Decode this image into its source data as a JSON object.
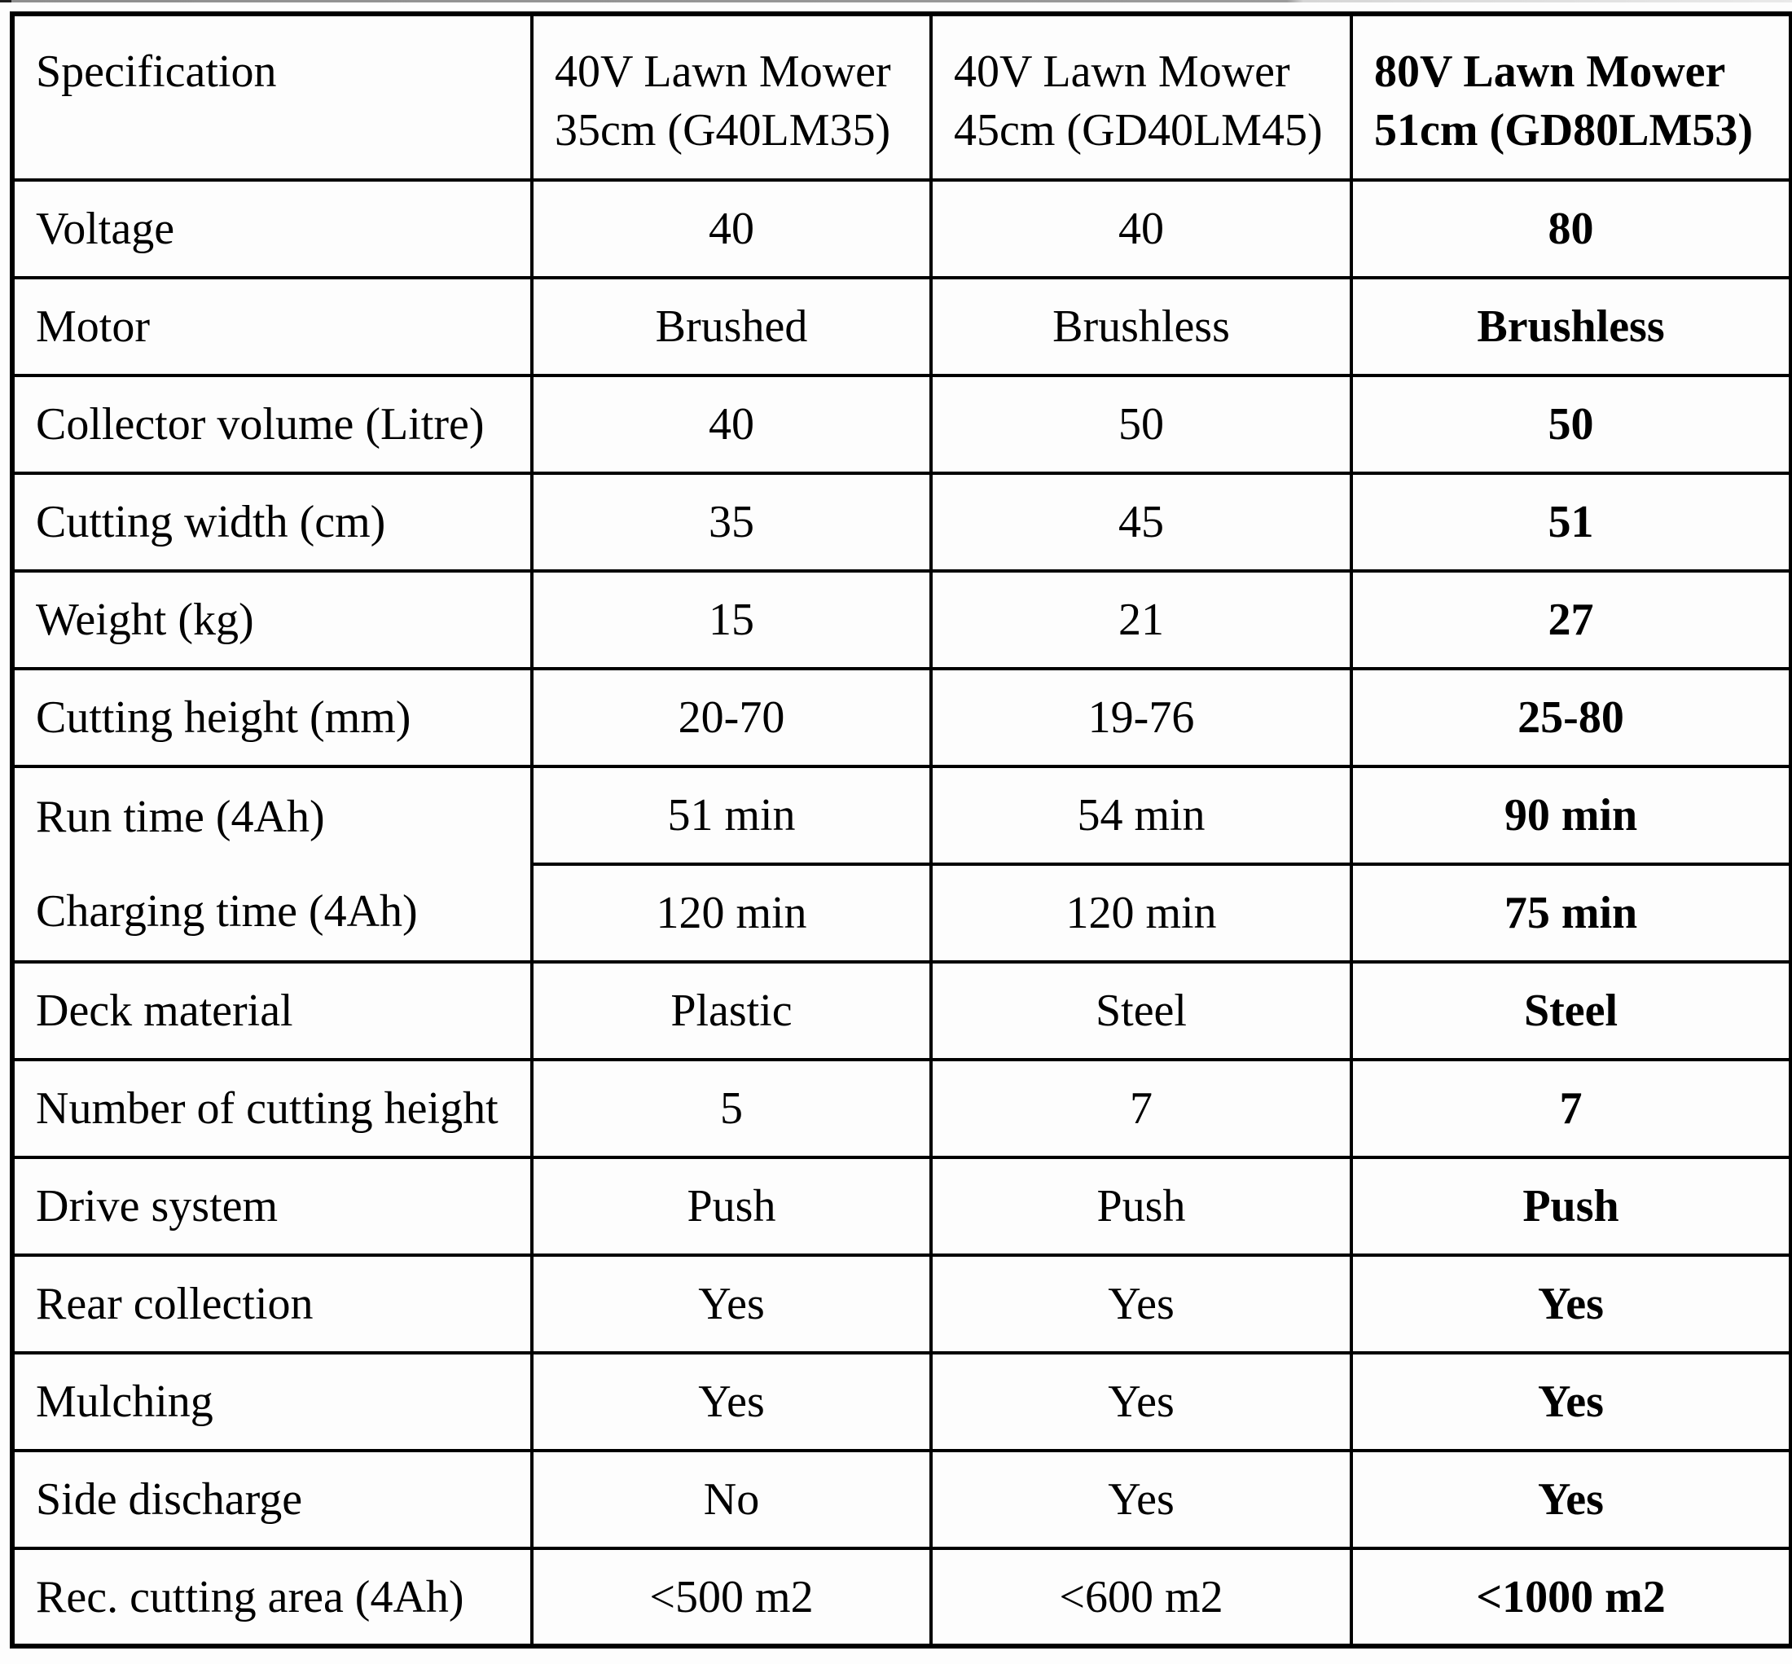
{
  "header": {
    "col1": "Specification",
    "col2": {
      "line1": "40V Lawn Mower",
      "line2": "35cm (G40LM35)"
    },
    "col3": {
      "line1": "40V Lawn Mower",
      "line2": "45cm (GD40LM45)"
    },
    "col4": {
      "line1": "80V Lawn Mower",
      "line2": "51cm (GD80LM53)"
    }
  },
  "rows": [
    {
      "label": "Voltage",
      "v1": "40",
      "v2": "40",
      "v3": "80"
    },
    {
      "label": "Motor",
      "v1": "Brushed",
      "v2": "Brushless",
      "v3": "Brushless"
    },
    {
      "label": "Collector volume (Litre)",
      "v1": "40",
      "v2": "50",
      "v3": "50"
    },
    {
      "label": "Cutting width (cm)",
      "v1": "35",
      "v2": "45",
      "v3": "51"
    },
    {
      "label": "Weight (kg)",
      "v1": "15",
      "v2": "21",
      "v3": "27"
    },
    {
      "label": "Cutting height (mm)",
      "v1": "20-70",
      "v2": "19-76",
      "v3": "25-80"
    },
    {
      "label": "Run time (4Ah)",
      "v1": "51 min",
      "v2": "54 min",
      "v3": "90 min"
    },
    {
      "label": "Charging time (4Ah)",
      "v1": "120 min",
      "v2": "120 min",
      "v3": "75 min"
    },
    {
      "label": "Deck material",
      "v1": "Plastic",
      "v2": "Steel",
      "v3": "Steel"
    },
    {
      "label": "Number of cutting height",
      "v1": "5",
      "v2": "7",
      "v3": "7"
    },
    {
      "label": "Drive system",
      "v1": "Push",
      "v2": "Push",
      "v3": "Push"
    },
    {
      "label": "Rear collection",
      "v1": "Yes",
      "v2": "Yes",
      "v3": "Yes"
    },
    {
      "label": "Mulching",
      "v1": "Yes",
      "v2": "Yes",
      "v3": "Yes"
    },
    {
      "label": "Side discharge",
      "v1": "No",
      "v2": "Yes",
      "v3": "Yes"
    },
    {
      "label": "Rec. cutting area (4Ah)",
      "v1": "<500 m2",
      "v2": "<600 m2",
      "v3": "<1000 m2"
    }
  ],
  "colors": {
    "border": "#000000",
    "text": "#000000",
    "background": "#fdfdfd"
  },
  "chart_data": {
    "type": "table",
    "columns": [
      "Specification",
      "40V Lawn Mower 35cm (G40LM35)",
      "40V Lawn Mower 45cm (GD40LM45)",
      "80V Lawn Mower 51cm (GD80LM53)"
    ],
    "rows": [
      [
        "Voltage",
        "40",
        "40",
        "80"
      ],
      [
        "Motor",
        "Brushed",
        "Brushless",
        "Brushless"
      ],
      [
        "Collector volume (Litre)",
        "40",
        "50",
        "50"
      ],
      [
        "Cutting width (cm)",
        "35",
        "45",
        "51"
      ],
      [
        "Weight (kg)",
        "15",
        "21",
        "27"
      ],
      [
        "Cutting height (mm)",
        "20-70",
        "19-76",
        "25-80"
      ],
      [
        "Run time (4Ah)",
        "51 min",
        "54 min",
        "90 min"
      ],
      [
        "Charging time (4Ah)",
        "120 min",
        "120 min",
        "75 min"
      ],
      [
        "Deck material",
        "Plastic",
        "Steel",
        "Steel"
      ],
      [
        "Number of cutting height",
        "5",
        "7",
        "7"
      ],
      [
        "Drive system",
        "Push",
        "Push",
        "Push"
      ],
      [
        "Rear collection",
        "Yes",
        "Yes",
        "Yes"
      ],
      [
        "Mulching",
        "Yes",
        "Yes",
        "Yes"
      ],
      [
        "Side discharge",
        "No",
        "Yes",
        "Yes"
      ],
      [
        "Rec. cutting area (4Ah)",
        "<500 m2",
        "<600 m2",
        "<1000 m2"
      ]
    ],
    "layout_hints": {
      "bold_column": 3,
      "merged_label_rows": [
        6,
        7
      ],
      "grid": "on"
    }
  }
}
